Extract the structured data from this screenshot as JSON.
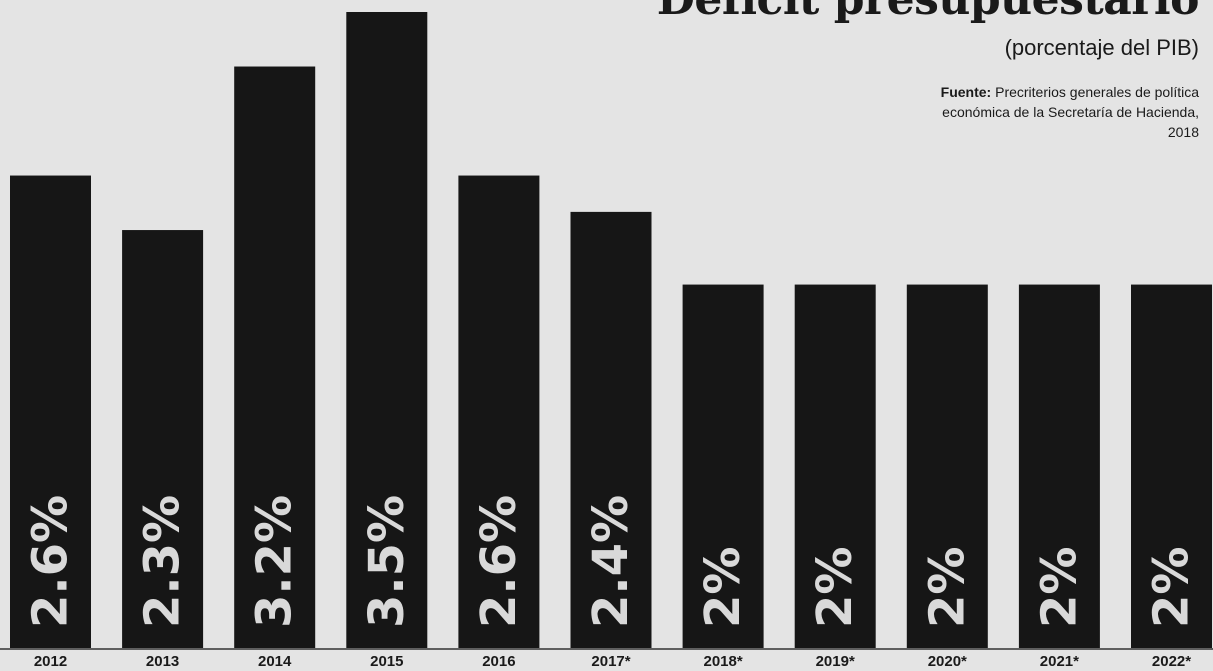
{
  "chart_data": {
    "type": "bar",
    "title": "Déficit presupuestario",
    "subtitle": "(porcentaje del PIB)",
    "source_label": "Fuente:",
    "source_text": "Precriterios generales de política económica de la Secretaría de Hacienda, 2018",
    "categories": [
      "2012",
      "2013",
      "2014",
      "2015",
      "2016",
      "2017*",
      "2018*",
      "2019*",
      "2020*",
      "2021*",
      "2022*"
    ],
    "values": [
      2.6,
      2.3,
      3.2,
      3.5,
      2.6,
      2.4,
      2.0,
      2.0,
      2.0,
      2.0,
      2.0
    ],
    "data_labels": [
      "2.6%",
      "2.3%",
      "3.2%",
      "3.5%",
      "2.6%",
      "2.4%",
      "2%",
      "2%",
      "2%",
      "2%",
      "2%"
    ],
    "ylim": [
      0,
      3.5
    ],
    "grid": false,
    "colors": {
      "bar": "#161616",
      "label": "#d9d9d9",
      "background": "#e4e4e4",
      "text": "#1a1a1a"
    }
  }
}
